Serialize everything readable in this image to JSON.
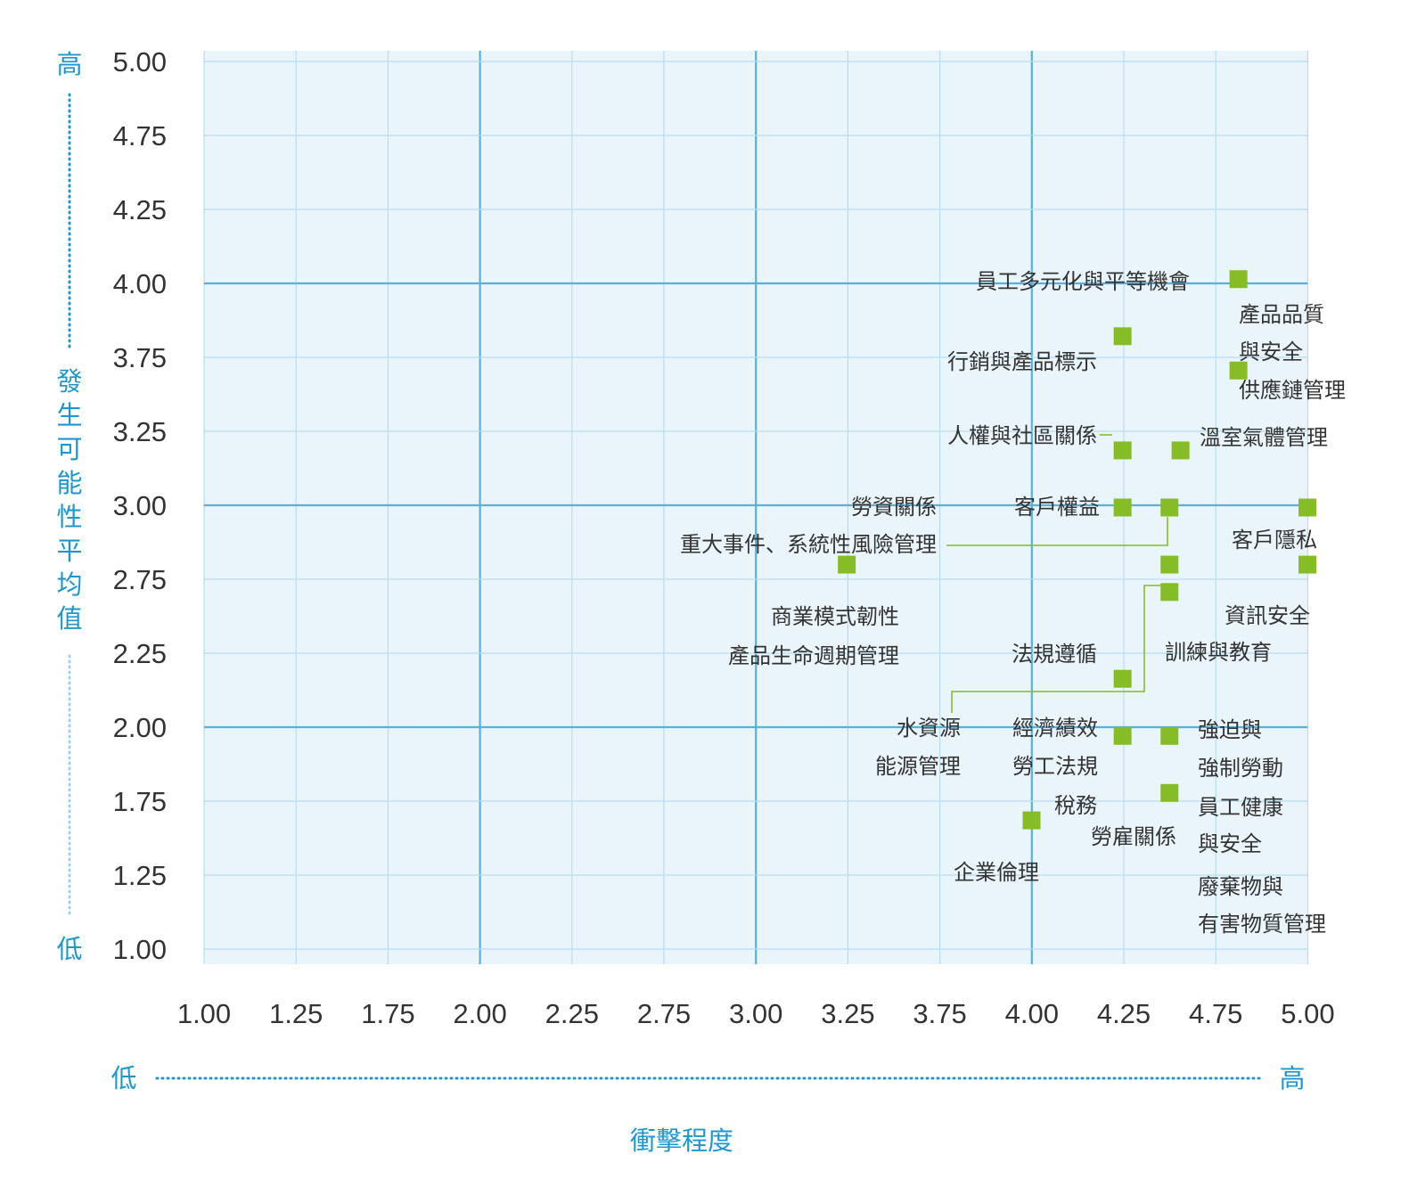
{
  "colors": {
    "plot_bg": "#eaf5fb",
    "grid_minor": "#b7dcef",
    "grid_major": "#56b1dc",
    "point": "#86bc25",
    "accent": "#1d97cf",
    "text": "#333333"
  },
  "chart_data": {
    "type": "scatter",
    "xlabel": "衝擊程度",
    "ylabel": "發生可能性平均值",
    "xlim": [
      1.0,
      5.0
    ],
    "ylim": [
      1.0,
      5.0
    ],
    "x_ticks": [
      "1.00",
      "1.25",
      "1.75",
      "2.00",
      "2.25",
      "2.75",
      "3.00",
      "3.25",
      "3.75",
      "4.00",
      "4.25",
      "4.75",
      "5.00"
    ],
    "y_ticks": [
      "1.00",
      "1.25",
      "1.75",
      "2.00",
      "2.25",
      "2.75",
      "3.00",
      "3.25",
      "3.75",
      "4.00",
      "4.25",
      "4.75",
      "5.00"
    ],
    "x_low": "低",
    "x_high": "高",
    "y_low": "低",
    "y_high": "高",
    "grid": true,
    "points": [
      {
        "x": 4.75,
        "y": 4.0,
        "label": [
          "員工多元化與平等機會"
        ]
      },
      {
        "x": 4.75,
        "y": 3.6,
        "label": [
          "產品品質",
          "與安全",
          "供應鏈管理"
        ]
      },
      {
        "x": 4.33,
        "y": 3.75,
        "label": [
          "行銷與產品標示"
        ]
      },
      {
        "x": 4.33,
        "y": 3.25,
        "label": [
          "人權與社區關係"
        ]
      },
      {
        "x": 4.54,
        "y": 3.25,
        "label": [
          "溫室氣體管理"
        ]
      },
      {
        "x": 4.33,
        "y": 3.0,
        "label": [
          "勞資關係",
          "客戶權益"
        ]
      },
      {
        "x": 4.5,
        "y": 3.0,
        "label": [
          "重大事件、系統性風險管理"
        ]
      },
      {
        "x": 5.0,
        "y": 3.0,
        "label": [
          "客戶隱私"
        ]
      },
      {
        "x": 3.33,
        "y": 2.75,
        "label": [
          "商業模式韌性",
          "產品生命週期管理"
        ]
      },
      {
        "x": 4.5,
        "y": 2.75,
        "label": [
          "水資源",
          "能源管理"
        ]
      },
      {
        "x": 5.0,
        "y": 2.75,
        "label": [
          "資訊安全"
        ]
      },
      {
        "x": 4.5,
        "y": 2.63,
        "label": [
          "訓練與教育"
        ]
      },
      {
        "x": 4.33,
        "y": 2.25,
        "label": [
          "法規遵循"
        ]
      },
      {
        "x": 4.33,
        "y": 2.0,
        "label": [
          "經濟績效",
          "勞工法規"
        ]
      },
      {
        "x": 4.5,
        "y": 2.0,
        "label": [
          "強迫與",
          "強制勞動"
        ]
      },
      {
        "x": 4.5,
        "y": 1.75,
        "label": [
          "稅務",
          "勞雇關係",
          "員工健康",
          "與安全",
          "廢棄物與",
          "有害物質管理"
        ]
      },
      {
        "x": 4.0,
        "y": 1.63,
        "label": [
          "企業倫理"
        ]
      }
    ]
  }
}
